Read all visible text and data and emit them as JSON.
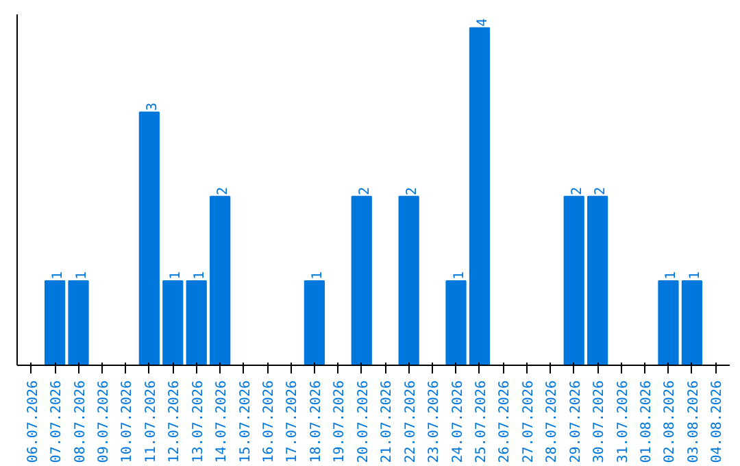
{
  "chart_data": {
    "type": "bar",
    "categories": [
      "06.07.2026",
      "07.07.2026",
      "08.07.2026",
      "09.07.2026",
      "10.07.2026",
      "11.07.2026",
      "12.07.2026",
      "13.07.2026",
      "14.07.2026",
      "15.07.2026",
      "16.07.2026",
      "17.07.2026",
      "18.07.2026",
      "19.07.2026",
      "20.07.2026",
      "21.07.2026",
      "22.07.2026",
      "23.07.2026",
      "24.07.2026",
      "25.07.2026",
      "26.07.2026",
      "27.07.2026",
      "28.07.2026",
      "29.07.2026",
      "30.07.2026",
      "31.07.2026",
      "01.08.2026",
      "02.08.2026",
      "03.08.2026",
      "04.08.2026"
    ],
    "values": [
      0,
      1,
      1,
      0,
      0,
      3,
      1,
      1,
      2,
      0,
      0,
      0,
      1,
      0,
      2,
      0,
      2,
      0,
      1,
      4,
      0,
      0,
      0,
      2,
      2,
      0,
      0,
      1,
      1,
      0
    ],
    "value_labels": [
      null,
      "1",
      "1",
      null,
      null,
      "3",
      "1",
      "1",
      "2",
      null,
      null,
      null,
      "1",
      null,
      "2",
      null,
      "2",
      null,
      "1",
      "4",
      null,
      null,
      null,
      "2",
      "2",
      null,
      null,
      "1",
      "1",
      null
    ],
    "color": "#0077dd",
    "grid": false,
    "tick_labels": "x"
  }
}
